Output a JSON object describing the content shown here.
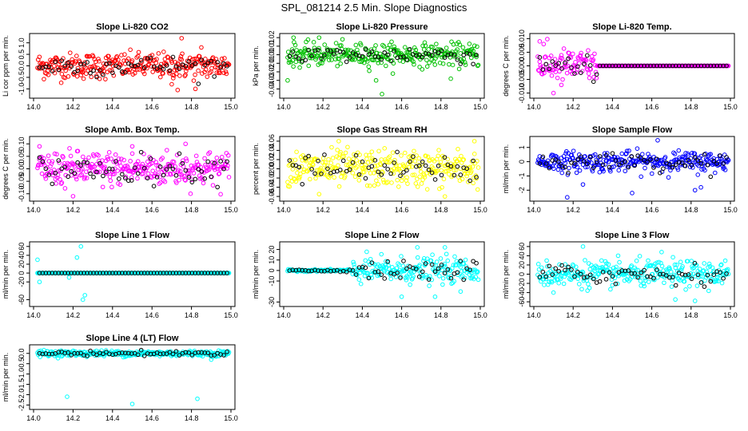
{
  "figure_title": "SPL_081214  2.5 Min. Slope Diagnostics",
  "chart_data": [
    {
      "type": "scatter",
      "title": "Slope Li-820 CO2",
      "ylabel": "Li cor ppm per min.",
      "xlim": [
        14.0,
        15.0
      ],
      "ylim": [
        -1.3,
        1.3
      ],
      "xticks": [
        "14.0",
        "14.2",
        "14.4",
        "14.6",
        "14.8",
        "15.0"
      ],
      "yticks": [
        "-1.0",
        "-0.5",
        "0.0",
        "0.5",
        "1.0"
      ],
      "ytick_values": [
        -1.0,
        -0.5,
        0.0,
        0.5,
        1.0
      ],
      "color": "#ff0000",
      "spread": 0.28,
      "flat_after": null,
      "outliers": [
        [
          14.73,
          -1.05
        ],
        [
          14.82,
          -1.0
        ],
        [
          14.75,
          1.2
        ],
        [
          14.7,
          -0.8
        ],
        [
          14.85,
          0.8
        ],
        [
          14.24,
          -0.4
        ]
      ]
    },
    {
      "type": "scatter",
      "title": "Slope Li-820 Pressure",
      "ylabel": "kPa per min.",
      "xlim": [
        14.0,
        15.0
      ],
      "ylim": [
        -0.048,
        0.022
      ],
      "xticks": [
        "14.0",
        "14.2",
        "14.4",
        "14.6",
        "14.8",
        "15.0"
      ],
      "yticks": [
        "-0.04",
        "-0.03",
        "-0.02",
        "-0.01",
        "0.00",
        "0.01",
        "0.02"
      ],
      "ytick_values": [
        -0.04,
        -0.03,
        -0.02,
        -0.01,
        0.0,
        0.01,
        0.02
      ],
      "color": "#00c000",
      "spread": 0.0065,
      "flat_after": null,
      "outliers": [
        [
          14.5,
          -0.046
        ],
        [
          14.18,
          0.02
        ],
        [
          14.05,
          0.02
        ],
        [
          14.47,
          -0.03
        ],
        [
          14.85,
          -0.028
        ],
        [
          14.02,
          -0.03
        ]
      ]
    },
    {
      "type": "scatter",
      "title": "Slope Li-820 Temp.",
      "ylabel": "degrees C per min.",
      "xlim": [
        14.0,
        15.0
      ],
      "ylim": [
        -0.011,
        0.011
      ],
      "xticks": [
        "14.0",
        "14.2",
        "14.4",
        "14.6",
        "14.8",
        "15.0"
      ],
      "yticks": [
        "-0.010",
        "-0.005",
        "0.000",
        "0.005",
        "0.010"
      ],
      "ytick_values": [
        -0.01,
        -0.005,
        0.0,
        0.005,
        0.01
      ],
      "color": "#ff00ff",
      "spread": 0.003,
      "flat_after": 14.32,
      "outliers": [
        [
          14.03,
          0.009
        ],
        [
          14.1,
          -0.01
        ],
        [
          14.05,
          0.008
        ],
        [
          14.14,
          -0.007
        ]
      ]
    },
    {
      "type": "scatter",
      "title": "Slope Amb. Box Temp.",
      "ylabel": "degrees C per min.",
      "xlim": [
        14.0,
        15.0
      ],
      "ylim": [
        -0.12,
        0.12
      ],
      "xticks": [
        "14.0",
        "14.2",
        "14.4",
        "14.6",
        "14.8",
        "15.0"
      ],
      "yticks": [
        "-0.10",
        "-0.05",
        "0.00",
        "0.05",
        "0.10"
      ],
      "ytick_values": [
        -0.1,
        -0.05,
        0.0,
        0.05,
        0.1
      ],
      "color": "#ff00ff",
      "spread": 0.035,
      "flat_after": null,
      "outliers": [
        [
          14.2,
          -0.11
        ],
        [
          14.77,
          0.1
        ],
        [
          14.5,
          0.09
        ],
        [
          14.03,
          0.09
        ]
      ]
    },
    {
      "type": "scatter",
      "title": "Slope Gas Stream RH",
      "ylabel": "percent per min.",
      "xlim": [
        14.0,
        15.0
      ],
      "ylim": [
        -0.065,
        0.065
      ],
      "xticks": [
        "14.0",
        "14.2",
        "14.4",
        "14.6",
        "14.8",
        "15.0"
      ],
      "yticks": [
        "-0.06",
        "-0.04",
        "-0.02",
        "0.00",
        "0.02",
        "0.04",
        "0.06"
      ],
      "ytick_values": [
        -0.06,
        -0.04,
        -0.02,
        0.0,
        0.02,
        0.04,
        0.06
      ],
      "color": "#ffff00",
      "spread": 0.02,
      "flat_after": null,
      "outliers": [
        [
          14.28,
          0.06
        ],
        [
          14.97,
          0.06
        ],
        [
          14.18,
          -0.055
        ],
        [
          14.82,
          -0.06
        ]
      ]
    },
    {
      "type": "scatter",
      "title": "Slope Sample Flow",
      "ylabel": "ml/min per min.",
      "xlim": [
        14.0,
        15.0
      ],
      "ylim": [
        -2.6,
        1.6
      ],
      "xticks": [
        "14.0",
        "14.2",
        "14.4",
        "14.6",
        "14.8",
        "15.0"
      ],
      "yticks": [
        "-2",
        "-1",
        "0",
        "1"
      ],
      "ytick_values": [
        -2,
        -1,
        0,
        1
      ],
      "color": "#0000ff",
      "spread": 0.35,
      "flat_after": null,
      "outliers": [
        [
          14.17,
          -2.5
        ],
        [
          14.63,
          1.5
        ],
        [
          14.5,
          -2.2
        ],
        [
          14.85,
          -1.8
        ],
        [
          14.82,
          -2.0
        ],
        [
          14.25,
          -1.6
        ]
      ]
    },
    {
      "type": "scatter",
      "title": "Slope Line 1 Flow",
      "ylabel": "ml/min per min.",
      "xlim": [
        14.0,
        15.0
      ],
      "ylim": [
        -70,
        65
      ],
      "xticks": [
        "14.0",
        "14.2",
        "14.4",
        "14.6",
        "14.8",
        "15.0"
      ],
      "yticks": [
        "-60",
        "-20",
        "0",
        "20",
        "40",
        "60"
      ],
      "ytick_values": [
        -60,
        -20,
        0,
        20,
        40,
        60
      ],
      "color": "#00ffff",
      "spread": 0,
      "flat_after": 14.3,
      "outliers": [
        [
          14.24,
          60
        ],
        [
          14.25,
          -60
        ],
        [
          14.02,
          30
        ],
        [
          14.22,
          35
        ],
        [
          14.26,
          -50
        ],
        [
          14.18,
          -10
        ],
        [
          14.03,
          -20
        ]
      ]
    },
    {
      "type": "scatter",
      "title": "Slope Line 2 Flow",
      "ylabel": "ml/min per min.",
      "xlim": [
        14.0,
        15.0
      ],
      "ylim": [
        -32,
        25
      ],
      "xticks": [
        "14.0",
        "14.2",
        "14.4",
        "14.6",
        "14.8",
        "15.0"
      ],
      "yticks": [
        "-30",
        "-10",
        "0",
        "10",
        "20"
      ],
      "ytick_values": [
        -30,
        -10,
        0,
        10,
        20
      ],
      "color": "#00ffff",
      "spread": 6,
      "flat_before": 14.35,
      "outliers": [
        [
          14.77,
          -25
        ],
        [
          14.82,
          22
        ],
        [
          14.68,
          22
        ],
        [
          14.9,
          -20
        ],
        [
          14.6,
          -25
        ]
      ]
    },
    {
      "type": "scatter",
      "title": "Slope Line 3 Flow",
      "ylabel": "ml/min per min.",
      "xlim": [
        14.0,
        15.0
      ],
      "ylim": [
        -65,
        65
      ],
      "xticks": [
        "14.0",
        "14.2",
        "14.4",
        "14.6",
        "14.8",
        "15.0"
      ],
      "yticks": [
        "-60",
        "-40",
        "-20",
        "0",
        "20",
        "40",
        "60"
      ],
      "ytick_values": [
        -60,
        -40,
        -20,
        0,
        20,
        40,
        60
      ],
      "color": "#00ffff",
      "spread": 14,
      "flat_after": null,
      "outliers": [
        [
          14.25,
          60
        ],
        [
          14.72,
          -55
        ],
        [
          14.82,
          -58
        ],
        [
          14.65,
          48
        ],
        [
          14.1,
          -40
        ]
      ]
    },
    {
      "type": "scatter",
      "title": "Slope Line 4 (LT) Flow",
      "ylabel": "ml/min per min.",
      "xlim": [
        14.0,
        15.0
      ],
      "ylim": [
        -2.6,
        0.3
      ],
      "xticks": [
        "14.0",
        "14.2",
        "14.4",
        "14.6",
        "14.8",
        "15.0"
      ],
      "yticks": [
        "-2.5",
        "-2.0",
        "-1.5",
        "-1.0",
        "-0.5",
        "0.0"
      ],
      "ytick_values": [
        -2.5,
        -2.0,
        -1.5,
        -1.0,
        -0.5,
        0.0
      ],
      "color": "#00ffff",
      "spread": 0.07,
      "flat_after": null,
      "outliers": [
        [
          14.17,
          -2.1
        ],
        [
          14.5,
          -2.45
        ],
        [
          14.83,
          -2.2
        ],
        [
          14.9,
          -0.3
        ]
      ]
    }
  ]
}
